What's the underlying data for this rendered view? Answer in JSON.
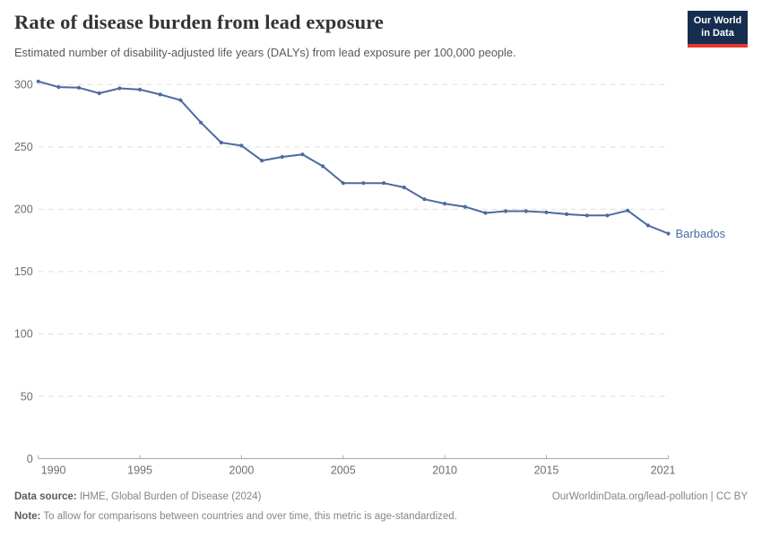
{
  "header": {
    "title": "Rate of disease burden from lead exposure",
    "subtitle": "Estimated number of disability-adjusted life years (DALYs) from lead exposure per 100,000 people.",
    "logo": {
      "line1": "Our World",
      "line2": "in Data",
      "bg_color": "#152d4e",
      "accent_color": "#e5362d"
    }
  },
  "chart_data": {
    "type": "line",
    "title": "Rate of disease burden from lead exposure",
    "xlabel": "",
    "ylabel": "",
    "x": [
      1990,
      1991,
      1992,
      1993,
      1994,
      1995,
      1996,
      1997,
      1998,
      1999,
      2000,
      2001,
      2002,
      2003,
      2004,
      2005,
      2006,
      2007,
      2008,
      2009,
      2010,
      2011,
      2012,
      2013,
      2014,
      2015,
      2016,
      2017,
      2018,
      2019,
      2020,
      2021
    ],
    "series": [
      {
        "name": "Barbados",
        "color": "#4d6a9f",
        "values": [
          302.5,
          298,
          297.5,
          293,
          297,
          296,
          292,
          287.5,
          269.5,
          253.5,
          251,
          239,
          242,
          244,
          234.5,
          221,
          221,
          221,
          217.5,
          208,
          204.5,
          202,
          197,
          198.5,
          198.5,
          197.5,
          196,
          195,
          195,
          199,
          187,
          180.5
        ]
      }
    ],
    "ylim": [
      0,
      300
    ],
    "xlim": [
      1990,
      2021
    ],
    "yticks": [
      0,
      50,
      100,
      150,
      200,
      250,
      300
    ],
    "xticks": [
      1990,
      1995,
      2000,
      2005,
      2010,
      2015,
      2021
    ],
    "grid": "horizontal dashed",
    "legend": "end-of-line label",
    "end_label": "Barbados"
  },
  "footer": {
    "source_label": "Data source:",
    "source_value": " IHME, Global Burden of Disease (2024)",
    "license": "OurWorldinData.org/lead-pollution | CC BY",
    "note_label": "Note:",
    "note_value": " To allow for comparisons between countries and over time, this metric is age-standardized."
  }
}
